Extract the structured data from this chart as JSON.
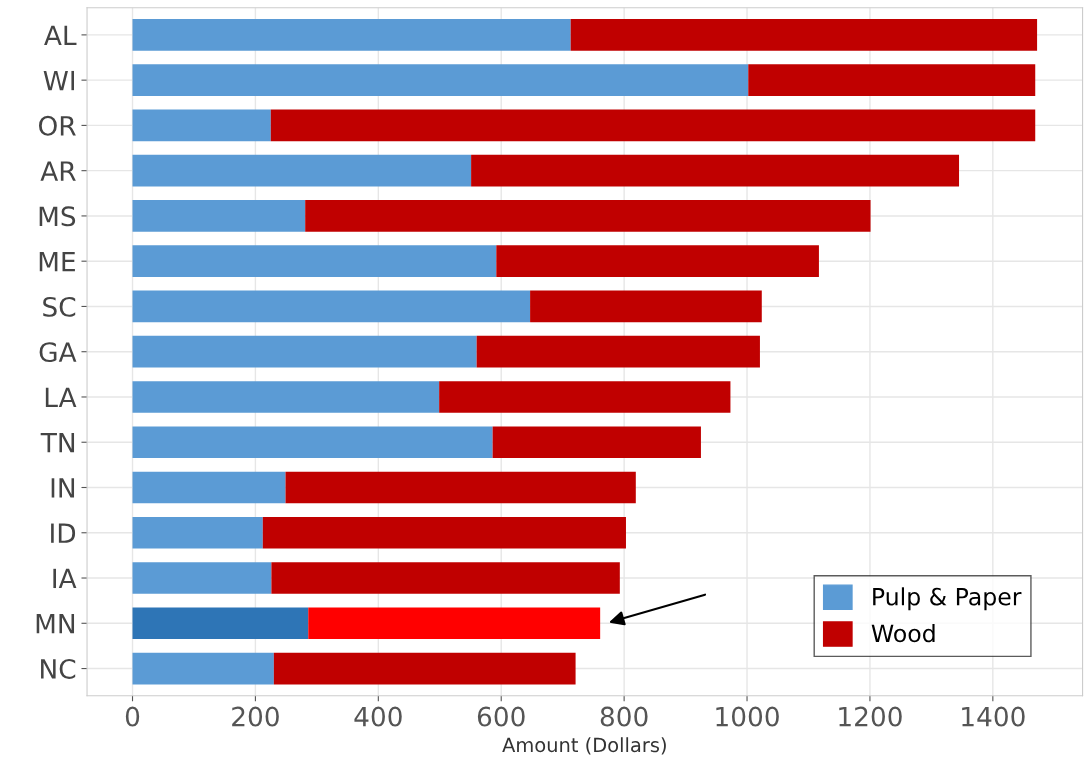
{
  "chart_data": {
    "type": "bar",
    "orientation": "horizontal",
    "stacked": true,
    "xlabel": "Amount (Dollars)",
    "categories": [
      "AL",
      "WI",
      "OR",
      "AR",
      "MS",
      "ME",
      "SC",
      "GA",
      "LA",
      "TN",
      "IN",
      "ID",
      "IA",
      "MN",
      "NC"
    ],
    "series": [
      {
        "name": "Pulp & Paper",
        "color": "#5b9bd5",
        "values": [
          713,
          1002,
          225,
          551,
          281,
          592,
          647,
          560,
          499,
          586,
          249,
          212,
          226,
          286,
          230
        ],
        "colors": [
          "#5b9bd5",
          "#5b9bd5",
          "#5b9bd5",
          "#5b9bd5",
          "#5b9bd5",
          "#5b9bd5",
          "#5b9bd5",
          "#5b9bd5",
          "#5b9bd5",
          "#5b9bd5",
          "#5b9bd5",
          "#5b9bd5",
          "#5b9bd5",
          "#2e75b6",
          "#5b9bd5"
        ]
      },
      {
        "name": "Wood",
        "color": "#c00000",
        "values": [
          759,
          467,
          1244,
          794,
          920,
          525,
          377,
          461,
          474,
          339,
          570,
          591,
          567,
          475,
          491
        ],
        "colors": [
          "#c00000",
          "#c00000",
          "#c00000",
          "#c00000",
          "#c00000",
          "#c00000",
          "#c00000",
          "#c00000",
          "#c00000",
          "#c00000",
          "#c00000",
          "#c00000",
          "#c00000",
          "#ff0000",
          "#c00000"
        ]
      }
    ],
    "xlim": [
      -74,
      1546
    ],
    "xticks": [
      0,
      200,
      400,
      600,
      800,
      1000,
      1200,
      1400
    ],
    "grid": true,
    "legend": "bottom right"
  }
}
